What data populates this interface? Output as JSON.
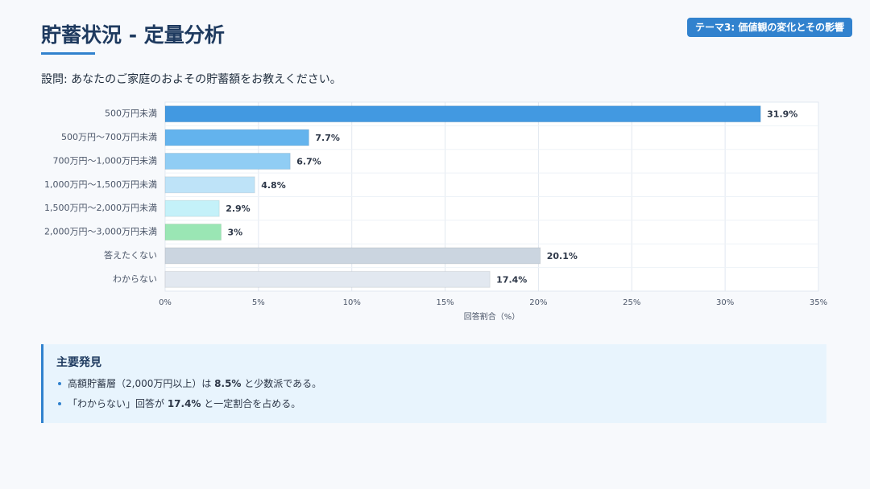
{
  "header": {
    "title": "貯蓄状況 - 定量分析",
    "badge": "テーマ3: 価値観の変化とその影響"
  },
  "question": "設問: あなたのご家庭のおよその貯蓄額をお教えください。",
  "chart_data": {
    "type": "hbar",
    "categories": [
      "500万円未満",
      "500万円〜700万円未満",
      "700万円〜1,000万円未満",
      "1,000万円〜1,500万円未満",
      "1,500万円〜2,000万円未満",
      "2,000万円〜3,000万円未満",
      "答えたくない",
      "わからない"
    ],
    "values": [
      31.9,
      7.7,
      6.7,
      4.8,
      2.9,
      3,
      20.1,
      17.4
    ],
    "value_labels": [
      "31.9%",
      "7.7%",
      "6.7%",
      "4.8%",
      "2.9%",
      "3%",
      "20.1%",
      "17.4%"
    ],
    "colors": [
      "#4299e1",
      "#63b3ed",
      "#90cdf4",
      "#bee3f8",
      "#c4f1f9",
      "#9ae6b4",
      "#cbd5e0",
      "#e2e8f0"
    ],
    "xlim": [
      0,
      35
    ],
    "xticks": [
      {
        "value": 0,
        "label": "0%"
      },
      {
        "value": 5,
        "label": "5%"
      },
      {
        "value": 10,
        "label": "10%"
      },
      {
        "value": 15,
        "label": "15%"
      },
      {
        "value": 20,
        "label": "20%"
      },
      {
        "value": 25,
        "label": "25%"
      },
      {
        "value": 30,
        "label": "30%"
      },
      {
        "value": 35,
        "label": "35%"
      }
    ],
    "x_label": "回答割合（%）",
    "grid": true
  },
  "findings": {
    "title": "主要発見",
    "items": [
      [
        "高額貯蓄層（2,000万円以上）は ",
        "8.5%",
        " と少数派である。"
      ],
      [
        "「わからない」回答が ",
        "17.4%",
        " と一定割合を占める。"
      ]
    ]
  }
}
